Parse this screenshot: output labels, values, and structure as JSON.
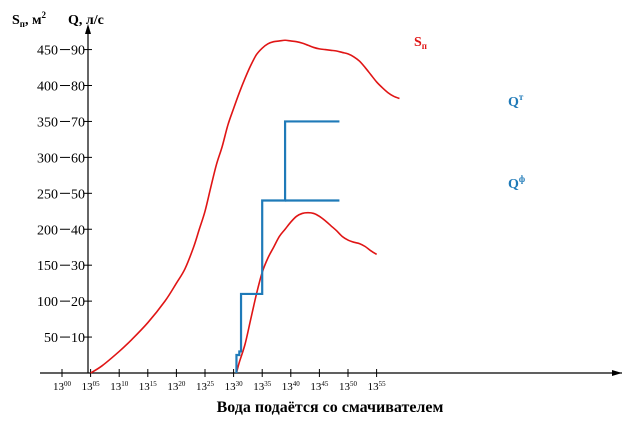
{
  "chart_data": {
    "type": "line",
    "xlabel": "Вода подаётся со смачивателем",
    "left_axis": {
      "label_main": "S",
      "label_sub": "п",
      "label_unit": ", м",
      "label_sup": "2",
      "ticks": [
        "50",
        "100",
        "150",
        "200",
        "250",
        "300",
        "350",
        "400",
        "450"
      ],
      "tick_values": [
        50,
        100,
        150,
        200,
        250,
        300,
        350,
        400,
        450
      ],
      "range": [
        0,
        500
      ]
    },
    "right_axis": {
      "label_main": "Q",
      "label_unit": ", л/с",
      "ticks": [
        "10",
        "20",
        "30",
        "40",
        "50",
        "60",
        "70",
        "80",
        "90"
      ],
      "tick_values": [
        10,
        20,
        30,
        40,
        50,
        60,
        70,
        80,
        90
      ],
      "range": [
        0,
        100
      ]
    },
    "x_axis": {
      "hour": "13",
      "minutes": [
        "00",
        "05",
        "10",
        "15",
        "20",
        "25",
        "30",
        "35",
        "40",
        "45",
        "50",
        "55"
      ],
      "minute_values": [
        0,
        5,
        10,
        15,
        20,
        25,
        30,
        35,
        40,
        45,
        50,
        55
      ],
      "range": [
        0,
        58
      ]
    },
    "series": [
      {
        "id": "s1",
        "label_main": "S",
        "label_sub": "п",
        "color": "#e01515",
        "axis": "left",
        "x": [
          5,
          7,
          10,
          12,
          15,
          18,
          20,
          21.5,
          23,
          24,
          25,
          26,
          27,
          28,
          29,
          30,
          31,
          32,
          33,
          34,
          35,
          36,
          37,
          38,
          39,
          40,
          41,
          42,
          43,
          44,
          45,
          46,
          47,
          48,
          49,
          50,
          51,
          52,
          53,
          54,
          55,
          56,
          57,
          58,
          59
        ],
        "y": [
          0,
          10,
          30,
          45,
          70,
          100,
          125,
          145,
          175,
          200,
          225,
          258,
          290,
          315,
          345,
          368,
          390,
          410,
          428,
          443,
          452,
          458,
          461,
          462,
          463,
          462,
          461,
          459,
          456,
          453,
          451,
          450,
          449,
          448,
          446,
          444,
          440,
          434,
          425,
          415,
          405,
          397,
          390,
          385,
          382
        ]
      },
      {
        "id": "s2",
        "label_main": "",
        "label_sub": "",
        "color": "#e01515",
        "axis": "left",
        "x": [
          30.5,
          31,
          32,
          33,
          34,
          35,
          36,
          37,
          38,
          39,
          40,
          41,
          42,
          43,
          44,
          45,
          46,
          47,
          48,
          49,
          50,
          51,
          52,
          53,
          54,
          55
        ],
        "y": [
          0,
          15,
          40,
          75,
          110,
          140,
          160,
          175,
          190,
          200,
          210,
          218,
          222,
          223,
          222,
          218,
          212,
          205,
          198,
          190,
          185,
          182,
          180,
          176,
          170,
          165
        ]
      },
      {
        "id": "q1",
        "label_main": "Q",
        "label_sup": "т",
        "color": "#1f7ab8",
        "axis": "right",
        "x": [
          30.5,
          30.5,
          31,
          31,
          31.3,
          31.3,
          35,
          35,
          39,
          39,
          48.5
        ],
        "y": [
          0,
          5,
          5,
          6,
          6,
          22,
          22,
          48,
          48,
          70,
          70
        ]
      },
      {
        "id": "q2",
        "label_main": "Q",
        "label_sup": "ф",
        "color": "#1f7ab8",
        "axis": "right",
        "x": [
          39,
          48.5
        ],
        "y": [
          48,
          48
        ]
      }
    ]
  }
}
